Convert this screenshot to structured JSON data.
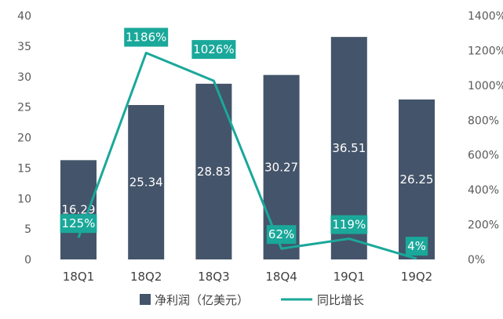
{
  "chart_data": {
    "type": "bar",
    "categories": [
      "18Q1",
      "18Q2",
      "18Q3",
      "18Q4",
      "19Q1",
      "19Q2"
    ],
    "series": [
      {
        "name": "净利润（亿美元）",
        "type": "bar",
        "axis": "left",
        "values": [
          16.29,
          25.34,
          28.83,
          30.27,
          36.51,
          26.25
        ],
        "labels": [
          "16.29",
          "25.34",
          "28.83",
          "30.27",
          "36.51",
          "26.25"
        ],
        "color": "#44546a"
      },
      {
        "name": "同比增长",
        "type": "line",
        "axis": "right",
        "values": [
          125,
          1186,
          1026,
          62,
          119,
          4
        ],
        "labels": [
          "125%",
          "1186%",
          "1026%",
          "62%",
          "119%",
          "4%"
        ],
        "color": "#1aa89a"
      }
    ],
    "y_left": {
      "ylim": [
        0,
        40
      ],
      "ticks": [
        "0",
        "5",
        "10",
        "15",
        "20",
        "25",
        "30",
        "35",
        "40"
      ]
    },
    "y_right": {
      "ylim": [
        0,
        1400
      ],
      "ticks": [
        "0%",
        "200%",
        "400%",
        "600%",
        "800%",
        "1000%",
        "1200%",
        "1400%"
      ]
    },
    "grid": false,
    "legend_position": "bottom-center"
  }
}
